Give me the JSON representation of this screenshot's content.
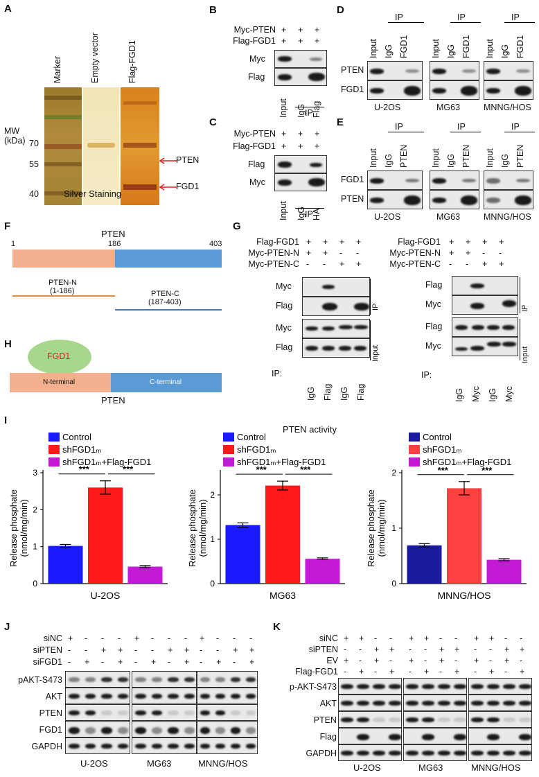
{
  "panels": {
    "A": "A",
    "B": "B",
    "C": "C",
    "D": "D",
    "E": "E",
    "F": "F",
    "G": "G",
    "H": "H",
    "I": "I",
    "J": "J",
    "K": "K"
  },
  "A": {
    "lanes": [
      "Marker",
      "Empty vector",
      "Flag-FGD1"
    ],
    "mw_label": "MW\n(kDa)",
    "mw": [
      "70",
      "55",
      "40"
    ],
    "arrows": [
      "PTEN",
      "FGD1"
    ],
    "caption": "Silver Staining"
  },
  "B": {
    "rows": [
      "Myc-PTEN",
      "Flag-FGD1"
    ],
    "signs": [
      "+",
      "+",
      "+"
    ],
    "blots": [
      "Myc",
      "Flag"
    ],
    "lanes": [
      "Input",
      "IgG",
      "Flag"
    ],
    "ip": "IP"
  },
  "C": {
    "rows": [
      "Myc-PTEN",
      "Flag-FGD1"
    ],
    "signs": [
      "+",
      "+",
      "+"
    ],
    "blots": [
      "Flag",
      "Myc"
    ],
    "lanes": [
      "Input",
      "IgG",
      "HA"
    ],
    "ip": "IP"
  },
  "D": {
    "ip": "IP",
    "lanes": [
      "Input",
      "IgG",
      "FGD1"
    ],
    "blots": [
      "PTEN",
      "FGD1"
    ],
    "cells": [
      "U-2OS",
      "MG63",
      "MNNG/HOS"
    ]
  },
  "E": {
    "ip": "IP",
    "lanes": [
      "Input",
      "IgG",
      "PTEN"
    ],
    "blots": [
      "FGD1",
      "PTEN"
    ],
    "cells": [
      "U-2OS",
      "MG63",
      "MNNG/HOS"
    ]
  },
  "F": {
    "title": "PTEN",
    "n1": "1",
    "n186": "186",
    "n403": "403",
    "ptenN": "PTEN-N",
    "ptenNr": "(1-186)",
    "ptenC": "PTEN-C",
    "ptenCr": "(187-403)"
  },
  "G": {
    "rows_left": [
      "Flag-FGD1",
      "Myc-PTEN-N",
      "Myc-PTEN-C"
    ],
    "signs_left": [
      [
        "+",
        "+",
        "+",
        "+"
      ],
      [
        "+",
        "+",
        "-",
        "-"
      ],
      [
        "-",
        "-",
        "+",
        "+"
      ]
    ],
    "blots_left": [
      "Myc",
      "Flag",
      "Myc",
      "Flag"
    ],
    "ip_label": "IP:",
    "lanes_left": [
      "IgG",
      "Flag",
      "IgG",
      "Flag"
    ],
    "rows_right": [
      "Flag-FGD1",
      "Myc-PTEN-N",
      "Myc-PTEN-C"
    ],
    "blots_right": [
      "Flag",
      "Myc",
      "Flag",
      "Myc"
    ],
    "lanes_right": [
      "IgG",
      "Myc",
      "IgG",
      "Myc"
    ],
    "side_ip": "IP",
    "side_input": "Input"
  },
  "H": {
    "fgd1": "FGD1",
    "nterm": "N-terminal",
    "cterm": "C-terminal",
    "pten": "PTEN"
  },
  "I": {
    "super_title": "PTEN activity",
    "legend": [
      "Control",
      "shFGD1ₘ",
      "shFGD1ₘ+Flag-FGD1"
    ],
    "ylabel1": "Release phosphate",
    "ylabel2": "(nmol/mg/min)",
    "sig": "***"
  },
  "chart_data": [
    {
      "type": "bar",
      "xlabel": "U-2OS",
      "categories": [
        "Control",
        "shFGD1ₘ",
        "shFGD1ₘ+Flag-FGD1"
      ],
      "values": [
        1.02,
        2.6,
        0.46
      ],
      "errors": [
        0.04,
        0.18,
        0.03
      ],
      "ylim": [
        0,
        3
      ],
      "yticks": [
        "0",
        "1",
        "2",
        "3"
      ],
      "colors": [
        "#1a1aff",
        "#ff1a1a",
        "#c21ad6"
      ]
    },
    {
      "type": "bar",
      "xlabel": "MG63",
      "categories": [
        "Control",
        "shFGD1ₘ",
        "shFGD1ₘ+Flag-FGD1"
      ],
      "values": [
        1.32,
        2.21,
        0.56
      ],
      "errors": [
        0.05,
        0.1,
        0.02
      ],
      "ylim": [
        0,
        2.5
      ],
      "yticks": [
        "0",
        "1",
        "2"
      ],
      "colors": [
        "#1a1aff",
        "#ff1a1a",
        "#c21ad6"
      ]
    },
    {
      "type": "bar",
      "xlabel": "MNNG/HOS",
      "categories": [
        "Control",
        "shFGD1ₘ",
        "shFGD1ₘ+Flag-FGD1"
      ],
      "values": [
        0.69,
        1.72,
        0.43
      ],
      "errors": [
        0.03,
        0.12,
        0.02
      ],
      "ylim": [
        0,
        2
      ],
      "yticks": [
        "0",
        "1",
        "2"
      ],
      "colors": [
        "#1a1a9f",
        "#ff4040",
        "#c21ad6"
      ]
    }
  ],
  "J": {
    "rows": [
      "siNC",
      "siPTEN",
      "siFGD1"
    ],
    "signs": [
      [
        "+",
        "-",
        "-",
        "-"
      ],
      [
        "-",
        "-",
        "+",
        "+"
      ],
      [
        "-",
        "+",
        "-",
        "+"
      ]
    ],
    "blots": [
      "pAKT-S473",
      "AKT",
      "PTEN",
      "FGD1",
      "GAPDH"
    ],
    "cells": [
      "U-2OS",
      "MG63",
      "MNNG/HOS"
    ]
  },
  "K": {
    "rows": [
      "siNC",
      "siPTEN",
      "EV",
      "Flag-FGD1"
    ],
    "signs": [
      [
        "+",
        "+",
        "-",
        "-"
      ],
      [
        "-",
        "-",
        "+",
        "+"
      ],
      [
        "+",
        "-",
        "+",
        "-"
      ],
      [
        "-",
        "+",
        "-",
        "+"
      ]
    ],
    "blots": [
      "p-AKT-S473",
      "AKT",
      "PTEN",
      "Flag",
      "GAPDH"
    ],
    "cells": [
      "U-2OS",
      "MG63",
      "MNNG/HOS"
    ]
  }
}
